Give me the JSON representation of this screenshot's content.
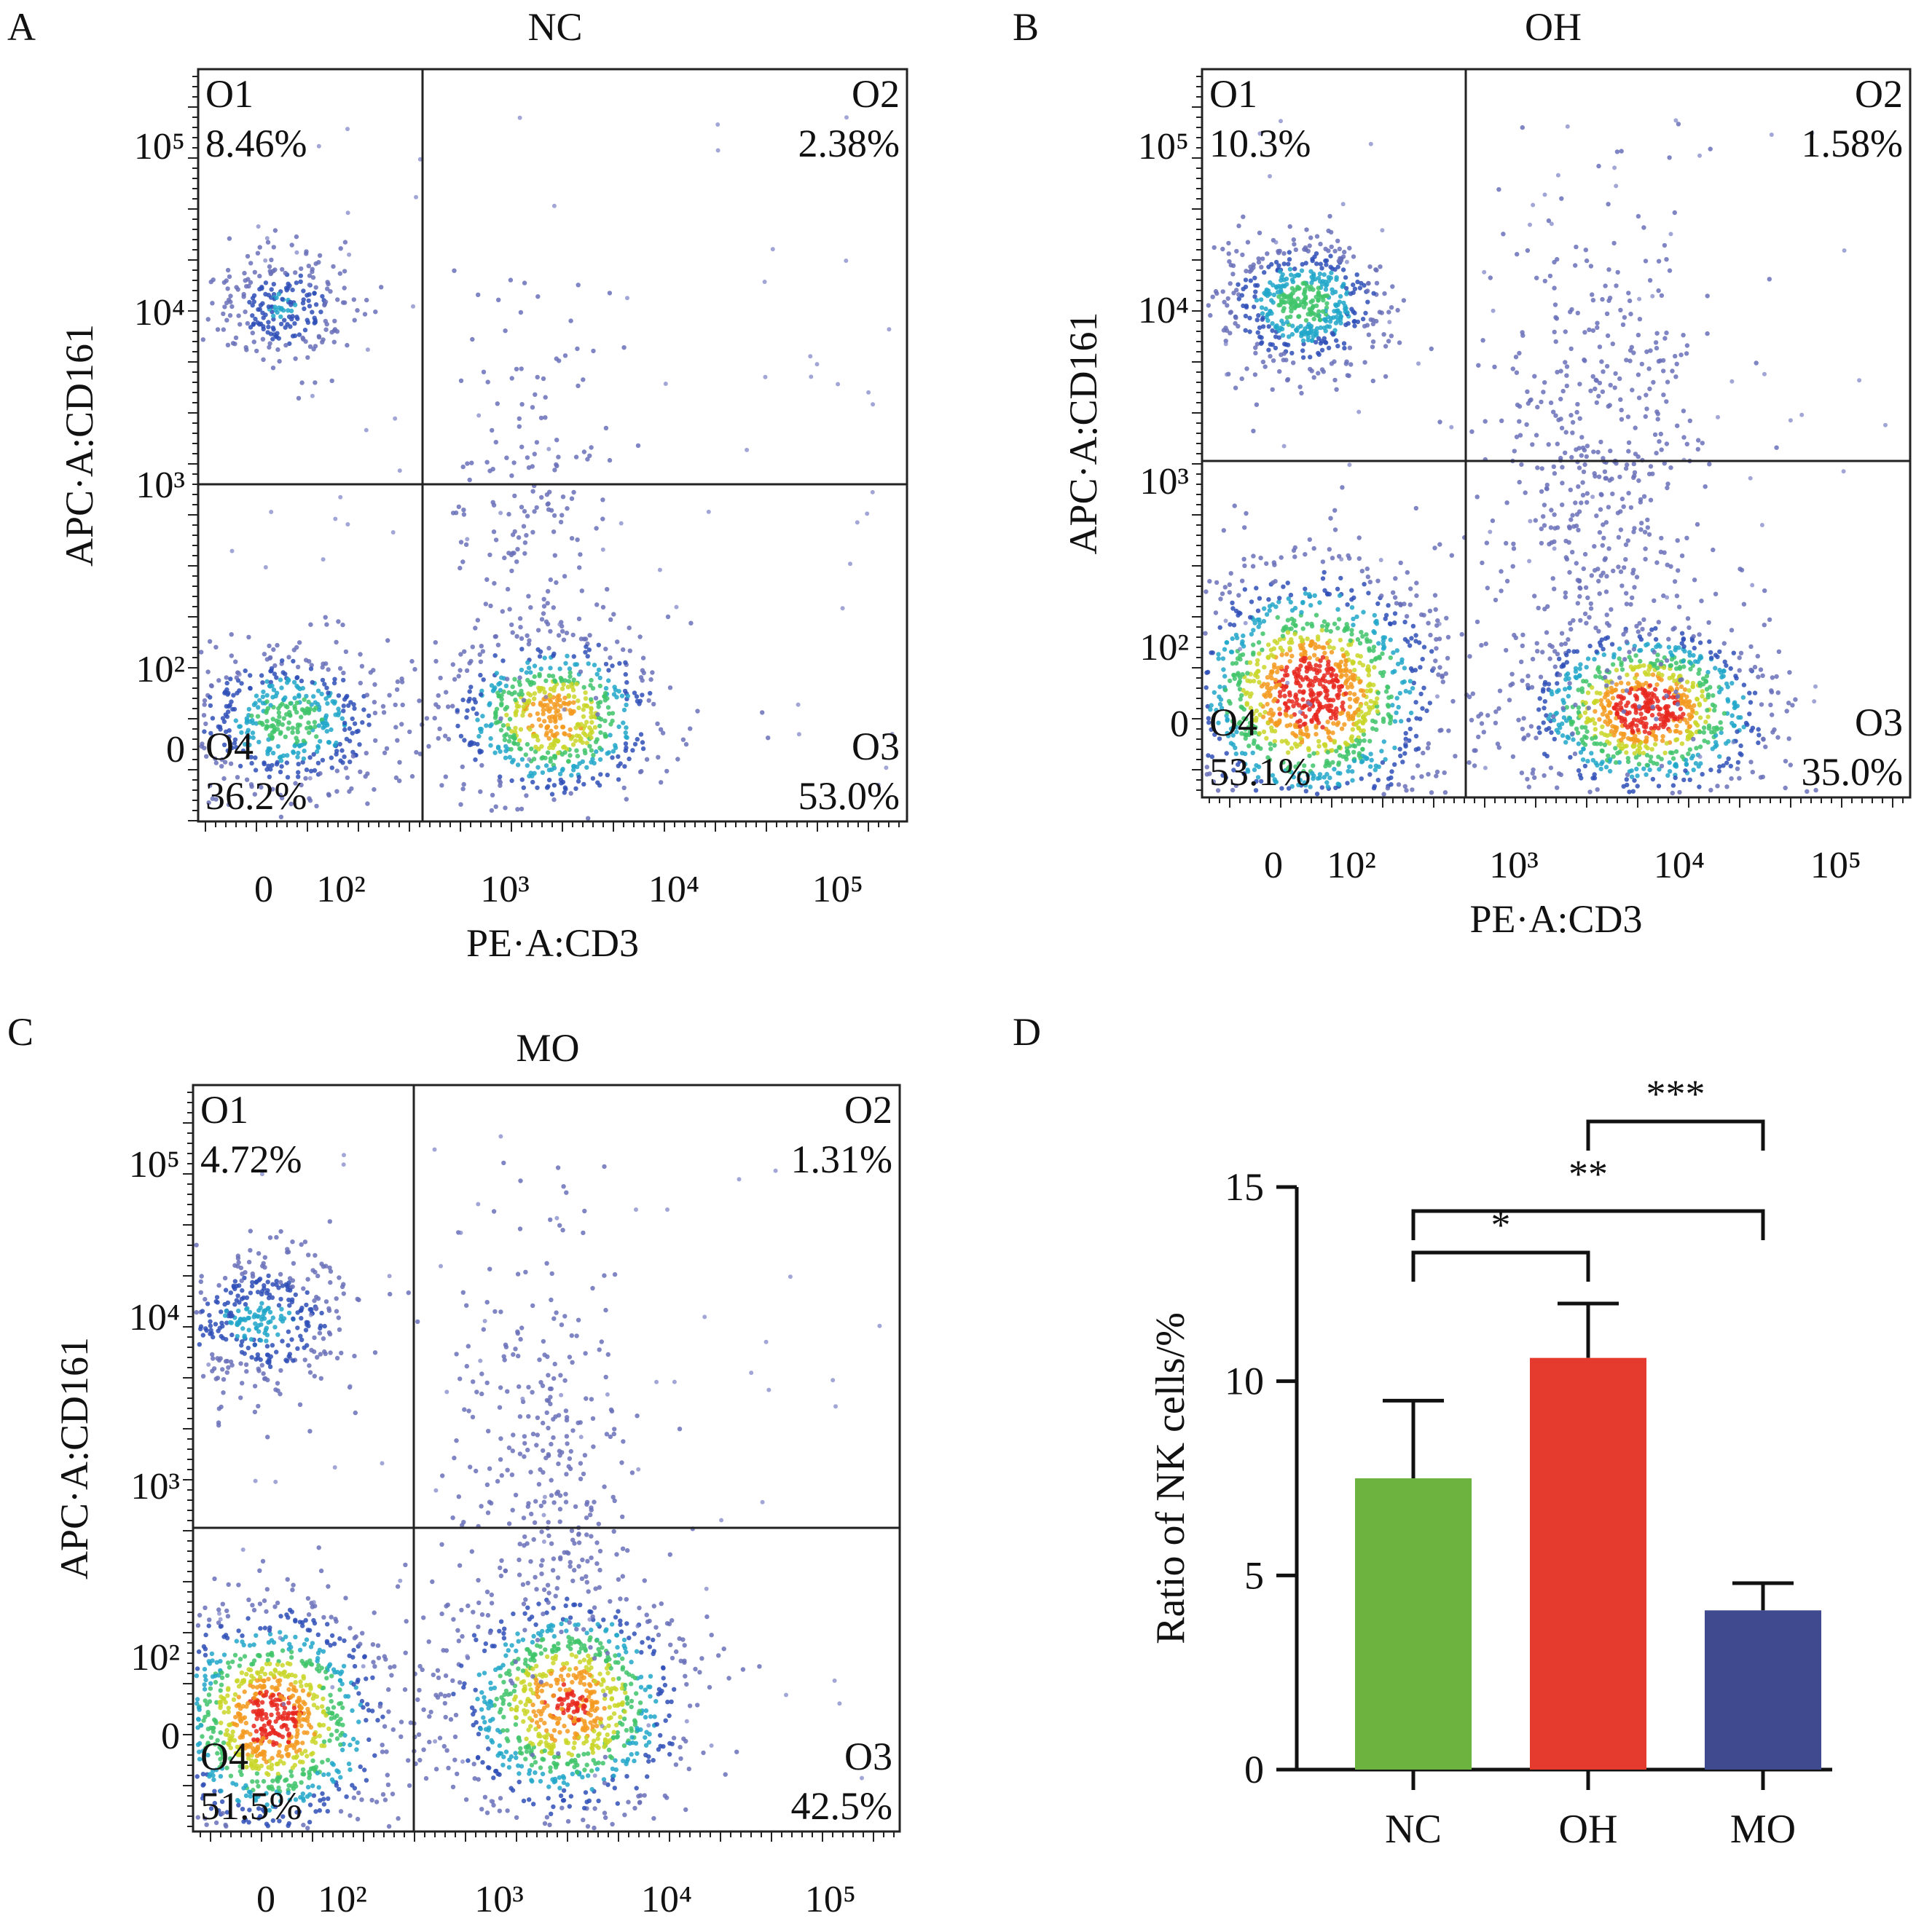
{
  "panels": [
    {
      "letter": "A",
      "title": "NC",
      "xlabel": "PE·A:CD3",
      "ylabel": "APC·A:CD161",
      "x_ticks": [
        "0",
        "10²",
        "10³",
        "10⁴",
        "10⁵"
      ],
      "y_ticks": [
        "10⁵",
        "10⁴",
        "10³",
        "10²",
        "0"
      ],
      "quadrants": [
        {
          "name": "O1",
          "value": "8.46%"
        },
        {
          "name": "O2",
          "value": "2.38%"
        },
        {
          "name": "O3",
          "value": "53.0%"
        },
        {
          "name": "O4",
          "value": "36.2%"
        }
      ]
    },
    {
      "letter": "B",
      "title": "OH",
      "xlabel": "PE·A:CD3",
      "ylabel": "APC·A:CD161",
      "x_ticks": [
        "0",
        "10²",
        "10³",
        "10⁴",
        "10⁵"
      ],
      "y_ticks": [
        "10⁵",
        "10⁴",
        "10³",
        "10²",
        "0"
      ],
      "quadrants": [
        {
          "name": "O1",
          "value": "10.3%"
        },
        {
          "name": "O2",
          "value": "1.58%"
        },
        {
          "name": "O3",
          "value": "35.0%"
        },
        {
          "name": "O4",
          "value": "53.1%"
        }
      ]
    },
    {
      "letter": "C",
      "title": "MO",
      "xlabel": "PE·A:CD3",
      "ylabel": "APC·A:CD161",
      "x_ticks": [
        "0",
        "10²",
        "10³",
        "10⁴",
        "10⁵"
      ],
      "y_ticks": [
        "10⁵",
        "10⁴",
        "10³",
        "10²",
        "0"
      ],
      "quadrants": [
        {
          "name": "O1",
          "value": "4.72%"
        },
        {
          "name": "O2",
          "value": "1.31%"
        },
        {
          "name": "O3",
          "value": "42.5%"
        },
        {
          "name": "O4",
          "value": "51.5%"
        }
      ]
    }
  ],
  "chart_data": {
    "type": "bar",
    "panel_letter": "D",
    "categories": [
      "NC",
      "OH",
      "MO"
    ],
    "values": [
      7.5,
      10.6,
      4.1
    ],
    "errors": [
      2.0,
      1.4,
      0.7
    ],
    "colors": [
      "#6db33f",
      "#e53a2e",
      "#3f4a8f"
    ],
    "ylabel": "Ratio of NK cells/%",
    "ylim": [
      0,
      15
    ],
    "yticks": [
      0,
      5,
      10,
      15
    ],
    "significance": [
      {
        "from": 0,
        "to": 1,
        "label": "*"
      },
      {
        "from": 0,
        "to": 2,
        "label": "**"
      },
      {
        "from": 1,
        "to": 2,
        "label": "***"
      }
    ]
  }
}
